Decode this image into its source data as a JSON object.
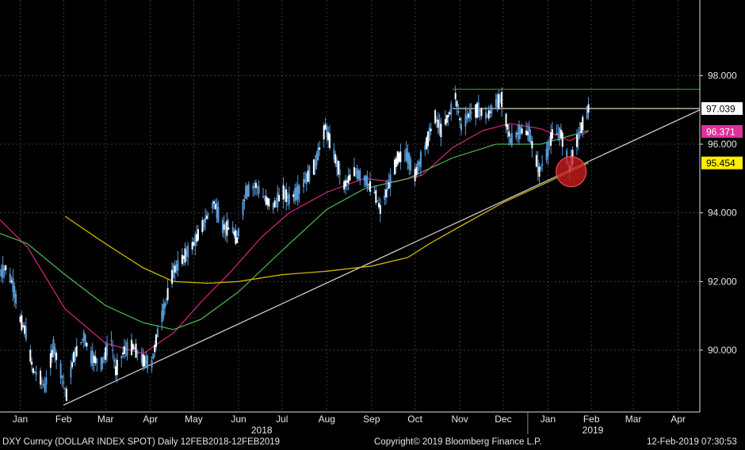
{
  "chart_data": {
    "type": "candlestick",
    "title": "",
    "ylim": [
      88.2,
      100.2
    ],
    "y_ticks": [
      90,
      92,
      94,
      96,
      98
    ],
    "y_tick_labels": [
      "90.000",
      "92.000",
      "94.000",
      "96.000",
      "98.000"
    ],
    "x_range": [
      "2018-01-01",
      "2019-04-30"
    ],
    "months": [
      {
        "label": "Jan",
        "date": "2018-01-15"
      },
      {
        "label": "Feb",
        "date": "2018-02-14"
      },
      {
        "label": "Mar",
        "date": "2018-03-15"
      },
      {
        "label": "Apr",
        "date": "2018-04-15"
      },
      {
        "label": "May",
        "date": "2018-05-15"
      },
      {
        "label": "Jun",
        "date": "2018-06-15"
      },
      {
        "label": "Jul",
        "date": "2018-07-15"
      },
      {
        "label": "Aug",
        "date": "2018-08-15"
      },
      {
        "label": "Sep",
        "date": "2018-09-15"
      },
      {
        "label": "Oct",
        "date": "2018-10-15"
      },
      {
        "label": "Nov",
        "date": "2018-11-15"
      },
      {
        "label": "Dec",
        "date": "2018-12-15"
      },
      {
        "label": "Jan",
        "date": "2019-01-15"
      },
      {
        "label": "Feb",
        "date": "2019-02-14"
      },
      {
        "label": "Mar",
        "date": "2019-03-15"
      },
      {
        "label": "Apr",
        "date": "2019-04-15"
      }
    ],
    "years": [
      {
        "label": "2018",
        "date": "2018-07-01"
      },
      {
        "label": "2019",
        "date": "2019-02-15"
      }
    ],
    "year_divider": "2019-01-01",
    "price": [
      {
        "date": "2018-01-01",
        "value": 92.2
      },
      {
        "date": "2018-01-05",
        "value": 92.4
      },
      {
        "date": "2018-01-10",
        "value": 91.9
      },
      {
        "date": "2018-01-15",
        "value": 90.9
      },
      {
        "date": "2018-01-19",
        "value": 90.5
      },
      {
        "date": "2018-01-24",
        "value": 89.4
      },
      {
        "date": "2018-01-29",
        "value": 89.2
      },
      {
        "date": "2018-02-01",
        "value": 88.9
      },
      {
        "date": "2018-02-07",
        "value": 90.1
      },
      {
        "date": "2018-02-12",
        "value": 89.4
      },
      {
        "date": "2018-02-16",
        "value": 88.7
      },
      {
        "date": "2018-02-21",
        "value": 89.8
      },
      {
        "date": "2018-02-28",
        "value": 90.4
      },
      {
        "date": "2018-03-05",
        "value": 89.8
      },
      {
        "date": "2018-03-12",
        "value": 89.6
      },
      {
        "date": "2018-03-19",
        "value": 90.3
      },
      {
        "date": "2018-03-22",
        "value": 89.4
      },
      {
        "date": "2018-03-28",
        "value": 90.0
      },
      {
        "date": "2018-04-03",
        "value": 90.1
      },
      {
        "date": "2018-04-10",
        "value": 89.7
      },
      {
        "date": "2018-04-16",
        "value": 89.6
      },
      {
        "date": "2018-04-20",
        "value": 90.5
      },
      {
        "date": "2018-04-25",
        "value": 91.3
      },
      {
        "date": "2018-05-01",
        "value": 92.3
      },
      {
        "date": "2018-05-08",
        "value": 92.7
      },
      {
        "date": "2018-05-15",
        "value": 93.1
      },
      {
        "date": "2018-05-22",
        "value": 93.7
      },
      {
        "date": "2018-05-29",
        "value": 94.3
      },
      {
        "date": "2018-06-04",
        "value": 93.6
      },
      {
        "date": "2018-06-11",
        "value": 93.5
      },
      {
        "date": "2018-06-14",
        "value": 93.2
      },
      {
        "date": "2018-06-20",
        "value": 94.6
      },
      {
        "date": "2018-06-27",
        "value": 94.8
      },
      {
        "date": "2018-07-03",
        "value": 94.4
      },
      {
        "date": "2018-07-09",
        "value": 94.2
      },
      {
        "date": "2018-07-16",
        "value": 94.6
      },
      {
        "date": "2018-07-20",
        "value": 94.4
      },
      {
        "date": "2018-07-26",
        "value": 94.6
      },
      {
        "date": "2018-08-01",
        "value": 95.0
      },
      {
        "date": "2018-08-07",
        "value": 95.4
      },
      {
        "date": "2018-08-14",
        "value": 96.5
      },
      {
        "date": "2018-08-20",
        "value": 95.7
      },
      {
        "date": "2018-08-27",
        "value": 94.8
      },
      {
        "date": "2018-09-03",
        "value": 95.2
      },
      {
        "date": "2018-09-10",
        "value": 95.0
      },
      {
        "date": "2018-09-17",
        "value": 94.6
      },
      {
        "date": "2018-09-21",
        "value": 94.1
      },
      {
        "date": "2018-09-27",
        "value": 94.8
      },
      {
        "date": "2018-10-03",
        "value": 95.6
      },
      {
        "date": "2018-10-09",
        "value": 95.7
      },
      {
        "date": "2018-10-15",
        "value": 95.1
      },
      {
        "date": "2018-10-22",
        "value": 95.9
      },
      {
        "date": "2018-10-29",
        "value": 96.8
      },
      {
        "date": "2018-11-02",
        "value": 96.4
      },
      {
        "date": "2018-11-08",
        "value": 96.9
      },
      {
        "date": "2018-11-12",
        "value": 97.4
      },
      {
        "date": "2018-11-16",
        "value": 96.5
      },
      {
        "date": "2018-11-22",
        "value": 96.9
      },
      {
        "date": "2018-11-28",
        "value": 97.0
      },
      {
        "date": "2018-12-04",
        "value": 96.8
      },
      {
        "date": "2018-12-10",
        "value": 97.2
      },
      {
        "date": "2018-12-14",
        "value": 97.3
      },
      {
        "date": "2018-12-20",
        "value": 96.1
      },
      {
        "date": "2018-12-27",
        "value": 96.4
      },
      {
        "date": "2019-01-02",
        "value": 96.3
      },
      {
        "date": "2019-01-09",
        "value": 95.2
      },
      {
        "date": "2019-01-14",
        "value": 95.7
      },
      {
        "date": "2019-01-18",
        "value": 96.3
      },
      {
        "date": "2019-01-24",
        "value": 96.3
      },
      {
        "date": "2019-01-30",
        "value": 95.3
      },
      {
        "date": "2019-02-04",
        "value": 96.1
      },
      {
        "date": "2019-02-08",
        "value": 96.6
      },
      {
        "date": "2019-02-12",
        "value": 97.04
      }
    ],
    "series": [
      {
        "color": "#cc2277",
        "values": [
          {
            "date": "2018-01-01",
            "value": 93.8
          },
          {
            "date": "2018-01-20",
            "value": 93.0
          },
          {
            "date": "2018-02-15",
            "value": 91.2
          },
          {
            "date": "2018-03-15",
            "value": 90.2
          },
          {
            "date": "2018-04-10",
            "value": 89.9
          },
          {
            "date": "2018-05-01",
            "value": 90.5
          },
          {
            "date": "2018-05-20",
            "value": 91.4
          },
          {
            "date": "2018-06-10",
            "value": 92.3
          },
          {
            "date": "2018-07-01",
            "value": 93.3
          },
          {
            "date": "2018-07-20",
            "value": 94.0
          },
          {
            "date": "2018-08-15",
            "value": 94.6
          },
          {
            "date": "2018-09-10",
            "value": 95.0
          },
          {
            "date": "2018-10-01",
            "value": 94.9
          },
          {
            "date": "2018-10-20",
            "value": 95.1
          },
          {
            "date": "2018-11-10",
            "value": 95.9
          },
          {
            "date": "2018-12-01",
            "value": 96.4
          },
          {
            "date": "2018-12-20",
            "value": 96.6
          },
          {
            "date": "2019-01-10",
            "value": 96.45
          },
          {
            "date": "2019-01-30",
            "value": 96.1
          },
          {
            "date": "2019-02-12",
            "value": 96.371
          }
        ]
      },
      {
        "color": "#4caf50",
        "values": [
          {
            "date": "2018-01-01",
            "value": 93.4
          },
          {
            "date": "2018-01-20",
            "value": 93.1
          },
          {
            "date": "2018-02-15",
            "value": 92.2
          },
          {
            "date": "2018-03-15",
            "value": 91.3
          },
          {
            "date": "2018-04-10",
            "value": 90.8
          },
          {
            "date": "2018-05-01",
            "value": 90.6
          },
          {
            "date": "2018-05-20",
            "value": 90.9
          },
          {
            "date": "2018-06-15",
            "value": 91.7
          },
          {
            "date": "2018-07-15",
            "value": 92.9
          },
          {
            "date": "2018-08-15",
            "value": 94.1
          },
          {
            "date": "2018-09-10",
            "value": 94.7
          },
          {
            "date": "2018-10-10",
            "value": 95.0
          },
          {
            "date": "2018-11-10",
            "value": 95.6
          },
          {
            "date": "2018-12-10",
            "value": 96.0
          },
          {
            "date": "2019-01-10",
            "value": 96.0
          },
          {
            "date": "2019-02-12",
            "value": 96.4
          }
        ]
      },
      {
        "color": "#c8b400",
        "values": [
          {
            "date": "2018-02-15",
            "value": 93.9
          },
          {
            "date": "2018-03-15",
            "value": 93.1
          },
          {
            "date": "2018-04-10",
            "value": 92.4
          },
          {
            "date": "2018-05-01",
            "value": 92.0
          },
          {
            "date": "2018-05-25",
            "value": 91.95
          },
          {
            "date": "2018-06-15",
            "value": 92.0
          },
          {
            "date": "2018-07-15",
            "value": 92.2
          },
          {
            "date": "2018-08-15",
            "value": 92.3
          },
          {
            "date": "2018-09-15",
            "value": 92.45
          },
          {
            "date": "2018-10-10",
            "value": 92.7
          },
          {
            "date": "2018-10-25",
            "value": 93.1
          },
          {
            "date": "2018-11-15",
            "value": 93.6
          },
          {
            "date": "2018-12-15",
            "value": 94.3
          },
          {
            "date": "2019-01-15",
            "value": 94.9
          },
          {
            "date": "2019-02-12",
            "value": 95.454
          }
        ]
      }
    ],
    "trendline": {
      "color": "#d8d8d8",
      "from": {
        "date": "2018-02-14",
        "value": 88.4
      },
      "to": {
        "date": "2019-04-30",
        "value": 97.0
      }
    },
    "hlines": [
      {
        "value": 97.6,
        "from": "2018-11-10",
        "color": "#3c9a32"
      },
      {
        "value": 97.039,
        "from": "2018-11-10",
        "color": "#d8d8b0"
      }
    ],
    "highlight": {
      "date": "2019-01-31",
      "value": 95.2,
      "color": "#cc1d1d"
    },
    "price_labels": [
      {
        "text": "97.039",
        "value": 97.039,
        "bg": "#ffffff",
        "fg": "#000000"
      },
      {
        "text": "96.371",
        "value": 96.371,
        "bg": "#e0309a",
        "fg": "#ffffff"
      },
      {
        "text": "95.454",
        "value": 95.454,
        "bg": "#ffee00",
        "fg": "#000000"
      }
    ],
    "colors": {
      "background": "#000000",
      "grid": "#3a3a3a",
      "price": "#5b9bd5",
      "axis": "#e0e0e0"
    },
    "grid": true
  },
  "footer": {
    "left": "DXY Curncy (DOLLAR INDEX SPOT)  Daily 12FEB2018-12FEB2019",
    "center": "Copyright© 2019 Bloomberg Finance L.P.",
    "right": "12-Feb-2019 07:30:53"
  }
}
